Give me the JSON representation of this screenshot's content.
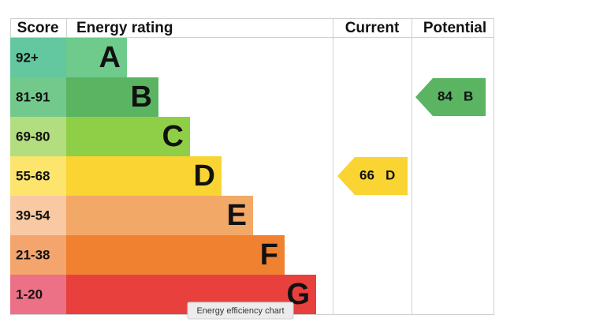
{
  "chart_data": {
    "type": "epc",
    "headers": {
      "score": "Score",
      "rating": "Energy rating",
      "current": "Current",
      "potential": "Potential"
    },
    "bands": [
      {
        "score": "92+",
        "letter": "A",
        "score_color": "#63c7a0",
        "color": "#6ecb8c"
      },
      {
        "score": "81-91",
        "letter": "B",
        "score_color": "#72c98b",
        "color": "#5ab462"
      },
      {
        "score": "69-80",
        "letter": "C",
        "score_color": "#b3de7f",
        "color": "#8fcf47"
      },
      {
        "score": "55-68",
        "letter": "D",
        "score_color": "#fde46c",
        "color": "#f9d433"
      },
      {
        "score": "39-54",
        "letter": "E",
        "score_color": "#f8c9a2",
        "color": "#f2a866"
      },
      {
        "score": "21-38",
        "letter": "F",
        "score_color": "#f4a46d",
        "color": "#ef8131"
      },
      {
        "score": "1-20",
        "letter": "G",
        "score_color": "#ec7086",
        "color": "#e8403d"
      }
    ],
    "current": {
      "value": 66,
      "letter": "D"
    },
    "potential": {
      "value": 84,
      "letter": "B"
    },
    "tooltip": "Energy efficiency chart"
  }
}
